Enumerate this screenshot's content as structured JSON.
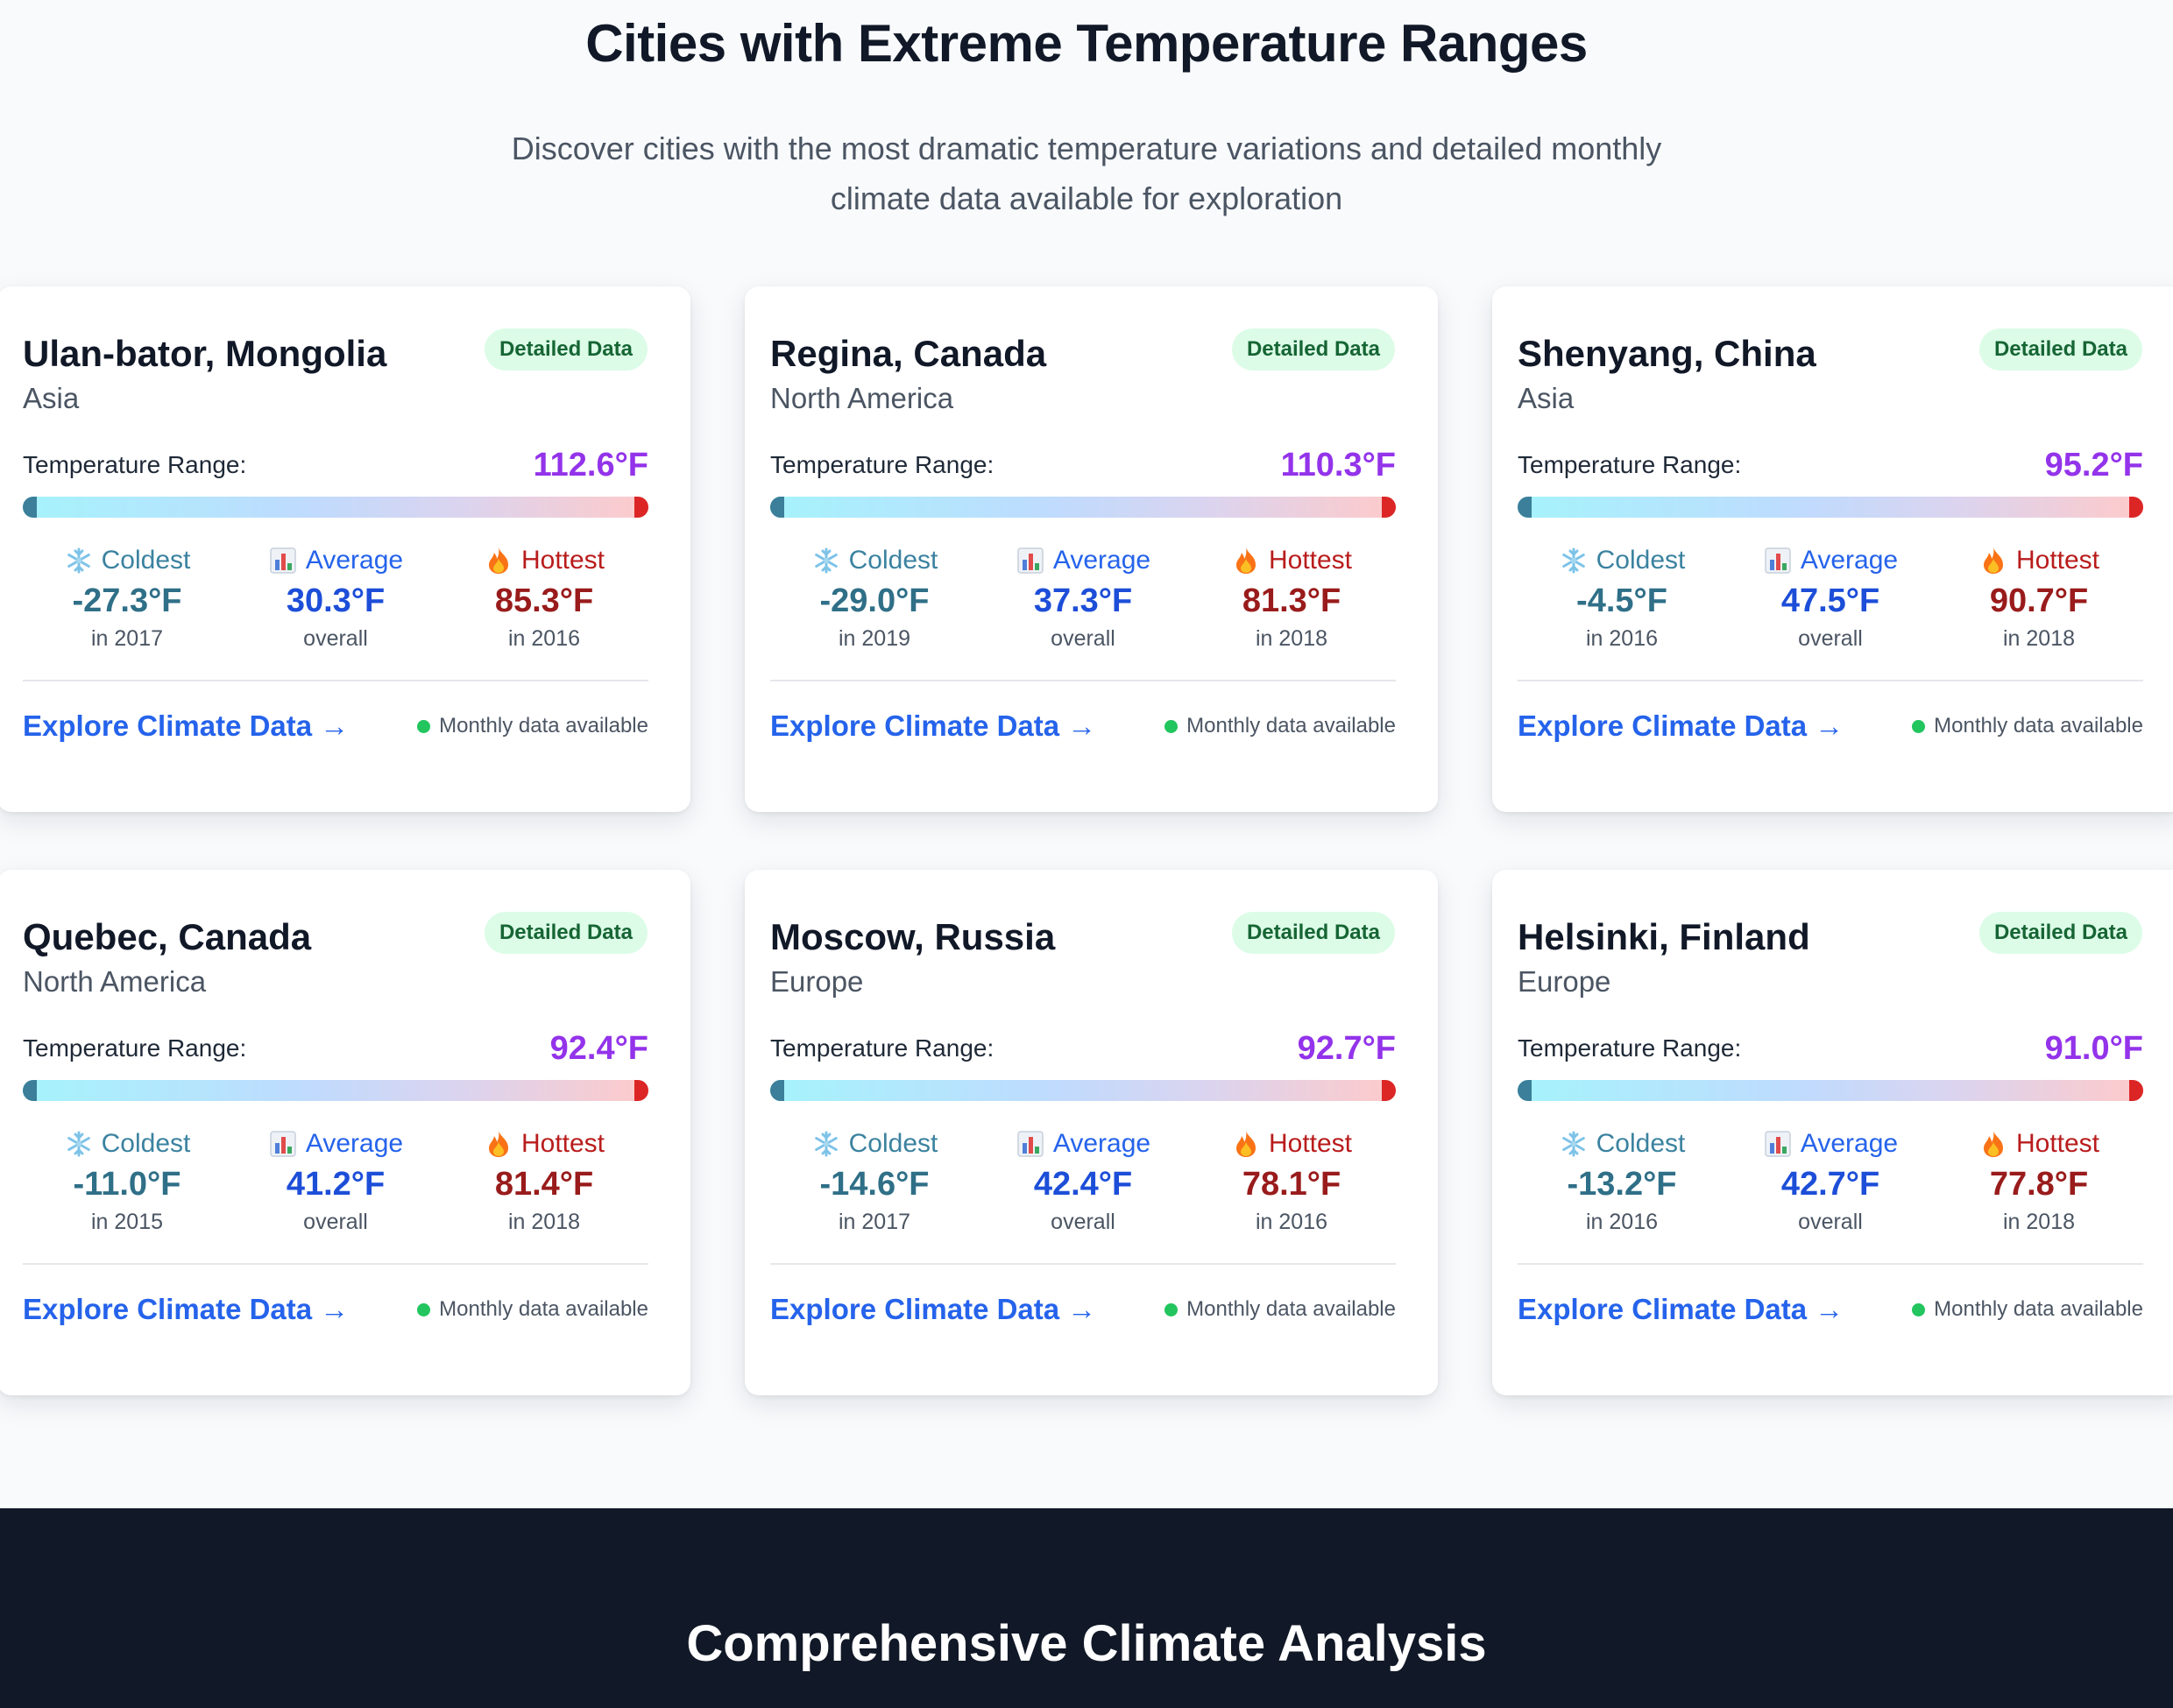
{
  "hero": {
    "title": "Cities with Extreme Temperature Ranges",
    "subtitle": "Discover cities with the most dramatic temperature variations and detailed monthly climate data available for exploration"
  },
  "labels": {
    "badge": "Detailed Data",
    "range_label": "Temperature Range:",
    "coldest": "Coldest",
    "average": "Average",
    "hottest": "Hottest",
    "explore": "Explore Climate Data →",
    "available": "Monthly data available"
  },
  "icons": {
    "coldest": "snowflake-icon",
    "average": "bar-chart-icon",
    "hottest": "fire-icon"
  },
  "colors": {
    "range": "#9333ea",
    "coldest": "#2f6f87",
    "average": "#1d4ed8",
    "hottest": "#991b1b",
    "badge_bg": "#dcfce7",
    "available_dot": "#22c55e",
    "dark_section": "#111827"
  },
  "cities": [
    {
      "name": "Ulan-bator, Mongolia",
      "region": "Asia",
      "range": "112.6°F",
      "coldest": "-27.3°F",
      "coldest_sub": "in 2017",
      "average": "30.3°F",
      "average_sub": "overall",
      "hottest": "85.3°F",
      "hottest_sub": "in 2016"
    },
    {
      "name": "Regina, Canada",
      "region": "North America",
      "range": "110.3°F",
      "coldest": "-29.0°F",
      "coldest_sub": "in 2019",
      "average": "37.3°F",
      "average_sub": "overall",
      "hottest": "81.3°F",
      "hottest_sub": "in 2018"
    },
    {
      "name": "Shenyang, China",
      "region": "Asia",
      "range": "95.2°F",
      "coldest": "-4.5°F",
      "coldest_sub": "in 2016",
      "average": "47.5°F",
      "average_sub": "overall",
      "hottest": "90.7°F",
      "hottest_sub": "in 2018"
    },
    {
      "name": "Quebec, Canada",
      "region": "North America",
      "range": "92.4°F",
      "coldest": "-11.0°F",
      "coldest_sub": "in 2015",
      "average": "41.2°F",
      "average_sub": "overall",
      "hottest": "81.4°F",
      "hottest_sub": "in 2018"
    },
    {
      "name": "Moscow, Russia",
      "region": "Europe",
      "range": "92.7°F",
      "coldest": "-14.6°F",
      "coldest_sub": "in 2017",
      "average": "42.4°F",
      "average_sub": "overall",
      "hottest": "78.1°F",
      "hottest_sub": "in 2016"
    },
    {
      "name": "Helsinki, Finland",
      "region": "Europe",
      "range": "91.0°F",
      "coldest": "-13.2°F",
      "coldest_sub": "in 2016",
      "average": "42.7°F",
      "average_sub": "overall",
      "hottest": "77.8°F",
      "hottest_sub": "in 2018"
    }
  ],
  "analysis": {
    "title": "Comprehensive Climate Analysis"
  }
}
